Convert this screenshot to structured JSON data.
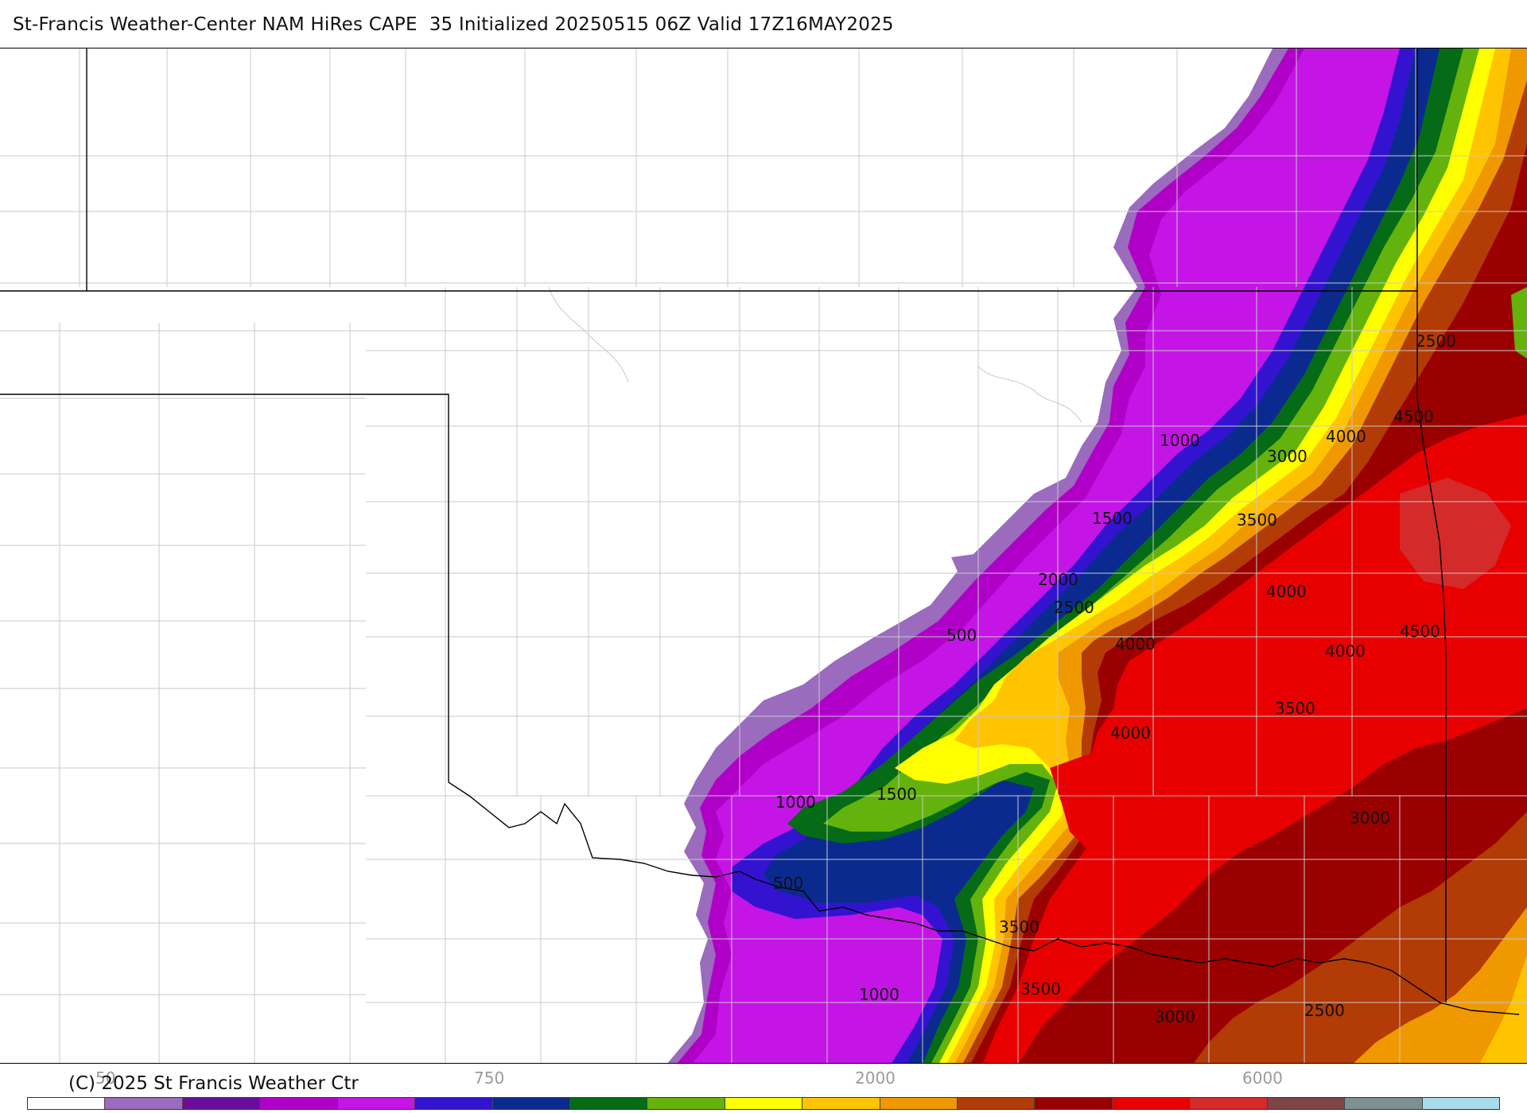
{
  "title": "St-Francis Weather-Center NAM HiRes CAPE  35 Initialized 20250515 06Z Valid 17Z16MAY2025",
  "copyright": "(C) 2025 St Francis Weather Ctr",
  "contour_labels": [
    "2500",
    "4500",
    "4000",
    "1000",
    "3000",
    "1500",
    "3500",
    "2000",
    "2500",
    "4000",
    "500",
    "4000",
    "4500",
    "4000",
    "3500",
    "4000",
    "1000",
    "1500",
    "3000",
    "500",
    "3500",
    "3500",
    "1000",
    "3000",
    "2500"
  ],
  "colorbar": {
    "colors": [
      "#ffffff",
      "#9b6bbd",
      "#6a0d9a",
      "#b000c8",
      "#c415e6",
      "#3313d0",
      "#0b2a90",
      "#066b16",
      "#63b30c",
      "#ffff00",
      "#ffc400",
      "#f09800",
      "#b33b05",
      "#9a0000",
      "#e80000",
      "#d42a2a",
      "#7e4545",
      "#7f8f96",
      "#a8dcea"
    ],
    "tick_labels": [
      "50",
      "750",
      "2000",
      "6000"
    ]
  }
}
